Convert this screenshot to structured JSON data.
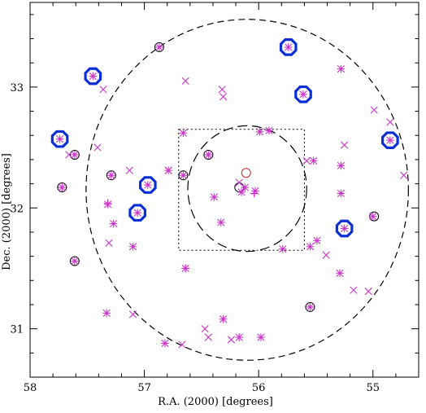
{
  "chart_data": {
    "type": "scatter",
    "title": "",
    "xlabel": "R.A. (2000) [degrees]",
    "ylabel": "Dec. (2000) [degrees]",
    "xlim": [
      58.0,
      54.6
    ],
    "ylim": [
      30.6,
      33.7
    ],
    "x_ticks": [
      58,
      57,
      56,
      55
    ],
    "y_ticks": [
      31,
      32,
      33
    ],
    "x_tick_labels": [
      "58",
      "57",
      "56",
      "55"
    ],
    "y_tick_labels": [
      "31",
      "32",
      "33"
    ],
    "x_minor_step": 0.2,
    "y_minor_step": 0.2,
    "grid": false,
    "colors": {
      "points": "#cc33cc",
      "highlight_octagon": "#0a2fd6",
      "circle_marker": "#000000",
      "red_circle": "#cc2222",
      "frame": "#000000"
    },
    "overlays": {
      "large_circle": {
        "center": [
          56.1,
          32.15
        ],
        "radius_deg": 1.41,
        "style": "dashed"
      },
      "small_circle": {
        "center": [
          56.1,
          32.16
        ],
        "radius_deg": 0.52,
        "style": "long-dash"
      },
      "square": {
        "ra_range": [
          56.7,
          55.6
        ],
        "dec_range": [
          31.65,
          32.65
        ],
        "style": "dotted"
      }
    },
    "series": [
      {
        "marker": "asterisk",
        "points": [
          [
            57.74,
            32.57
          ],
          [
            57.61,
            32.44
          ],
          [
            57.45,
            33.09
          ],
          [
            57.72,
            32.17
          ],
          [
            57.29,
            32.27
          ],
          [
            57.27,
            31.87
          ],
          [
            57.32,
            32.03
          ],
          [
            56.97,
            32.19
          ],
          [
            57.06,
            31.96
          ],
          [
            56.87,
            33.33
          ],
          [
            56.66,
            32.27
          ],
          [
            56.44,
            32.44
          ],
          [
            56.33,
            31.88
          ],
          [
            56.39,
            32.09
          ],
          [
            56.15,
            32.13
          ],
          [
            56.12,
            32.17
          ],
          [
            56.03,
            32.14
          ],
          [
            55.99,
            32.63
          ],
          [
            55.91,
            32.64
          ],
          [
            55.74,
            33.33
          ],
          [
            55.61,
            32.94
          ],
          [
            55.52,
            32.39
          ],
          [
            55.28,
            32.12
          ],
          [
            55.25,
            31.83
          ],
          [
            54.85,
            32.56
          ],
          [
            55.0,
            31.93
          ],
          [
            57.61,
            31.56
          ],
          [
            57.1,
            31.68
          ],
          [
            56.64,
            31.5
          ],
          [
            55.29,
            31.46
          ],
          [
            55.55,
            31.18
          ],
          [
            56.17,
            30.93
          ],
          [
            56.31,
            31.08
          ],
          [
            55.98,
            30.93
          ],
          [
            56.82,
            30.88
          ],
          [
            57.33,
            31.13
          ],
          [
            56.66,
            32.62
          ],
          [
            56.79,
            32.31
          ],
          [
            55.79,
            31.66
          ],
          [
            55.55,
            31.68
          ],
          [
            55.28,
            33.15
          ],
          [
            55.28,
            32.35
          ],
          [
            55.49,
            31.73
          ]
        ]
      },
      {
        "marker": "cross",
        "points": [
          [
            57.41,
            32.5
          ],
          [
            57.36,
            32.98
          ],
          [
            57.13,
            32.31
          ],
          [
            56.64,
            33.05
          ],
          [
            56.32,
            32.98
          ],
          [
            56.31,
            32.92
          ],
          [
            56.79,
            32.31
          ],
          [
            57.31,
            31.71
          ],
          [
            55.58,
            32.39
          ],
          [
            55.25,
            32.52
          ],
          [
            54.99,
            32.81
          ],
          [
            54.85,
            32.71
          ],
          [
            54.73,
            32.27
          ],
          [
            55.41,
            31.61
          ],
          [
            55.17,
            31.32
          ],
          [
            55.04,
            31.31
          ],
          [
            56.47,
            31.0
          ],
          [
            56.44,
            30.93
          ],
          [
            56.24,
            30.91
          ],
          [
            56.67,
            30.87
          ],
          [
            57.1,
            31.12
          ],
          [
            57.66,
            32.44
          ],
          [
            56.17,
            32.21
          ]
        ]
      },
      {
        "marker": "plus",
        "points": [
          [
            57.32,
            32.04
          ],
          [
            56.64,
            31.5
          ],
          [
            56.04,
            32.12
          ]
        ]
      }
    ],
    "highlight_octagons": [
      [
        57.74,
        32.57
      ],
      [
        57.45,
        33.09
      ],
      [
        56.97,
        32.19
      ],
      [
        57.06,
        31.96
      ],
      [
        55.74,
        33.33
      ],
      [
        55.61,
        32.94
      ],
      [
        54.85,
        32.56
      ],
      [
        55.25,
        31.83
      ]
    ],
    "circle_markers": [
      [
        57.61,
        31.56
      ],
      [
        57.29,
        32.27
      ],
      [
        56.66,
        32.27
      ],
      [
        56.44,
        32.44
      ],
      [
        56.17,
        32.17
      ],
      [
        54.99,
        31.93
      ],
      [
        56.87,
        33.33
      ],
      [
        57.61,
        32.44
      ],
      [
        57.72,
        32.17
      ],
      [
        55.55,
        31.18
      ]
    ],
    "red_circle_markers": [
      [
        56.11,
        32.29
      ]
    ]
  }
}
